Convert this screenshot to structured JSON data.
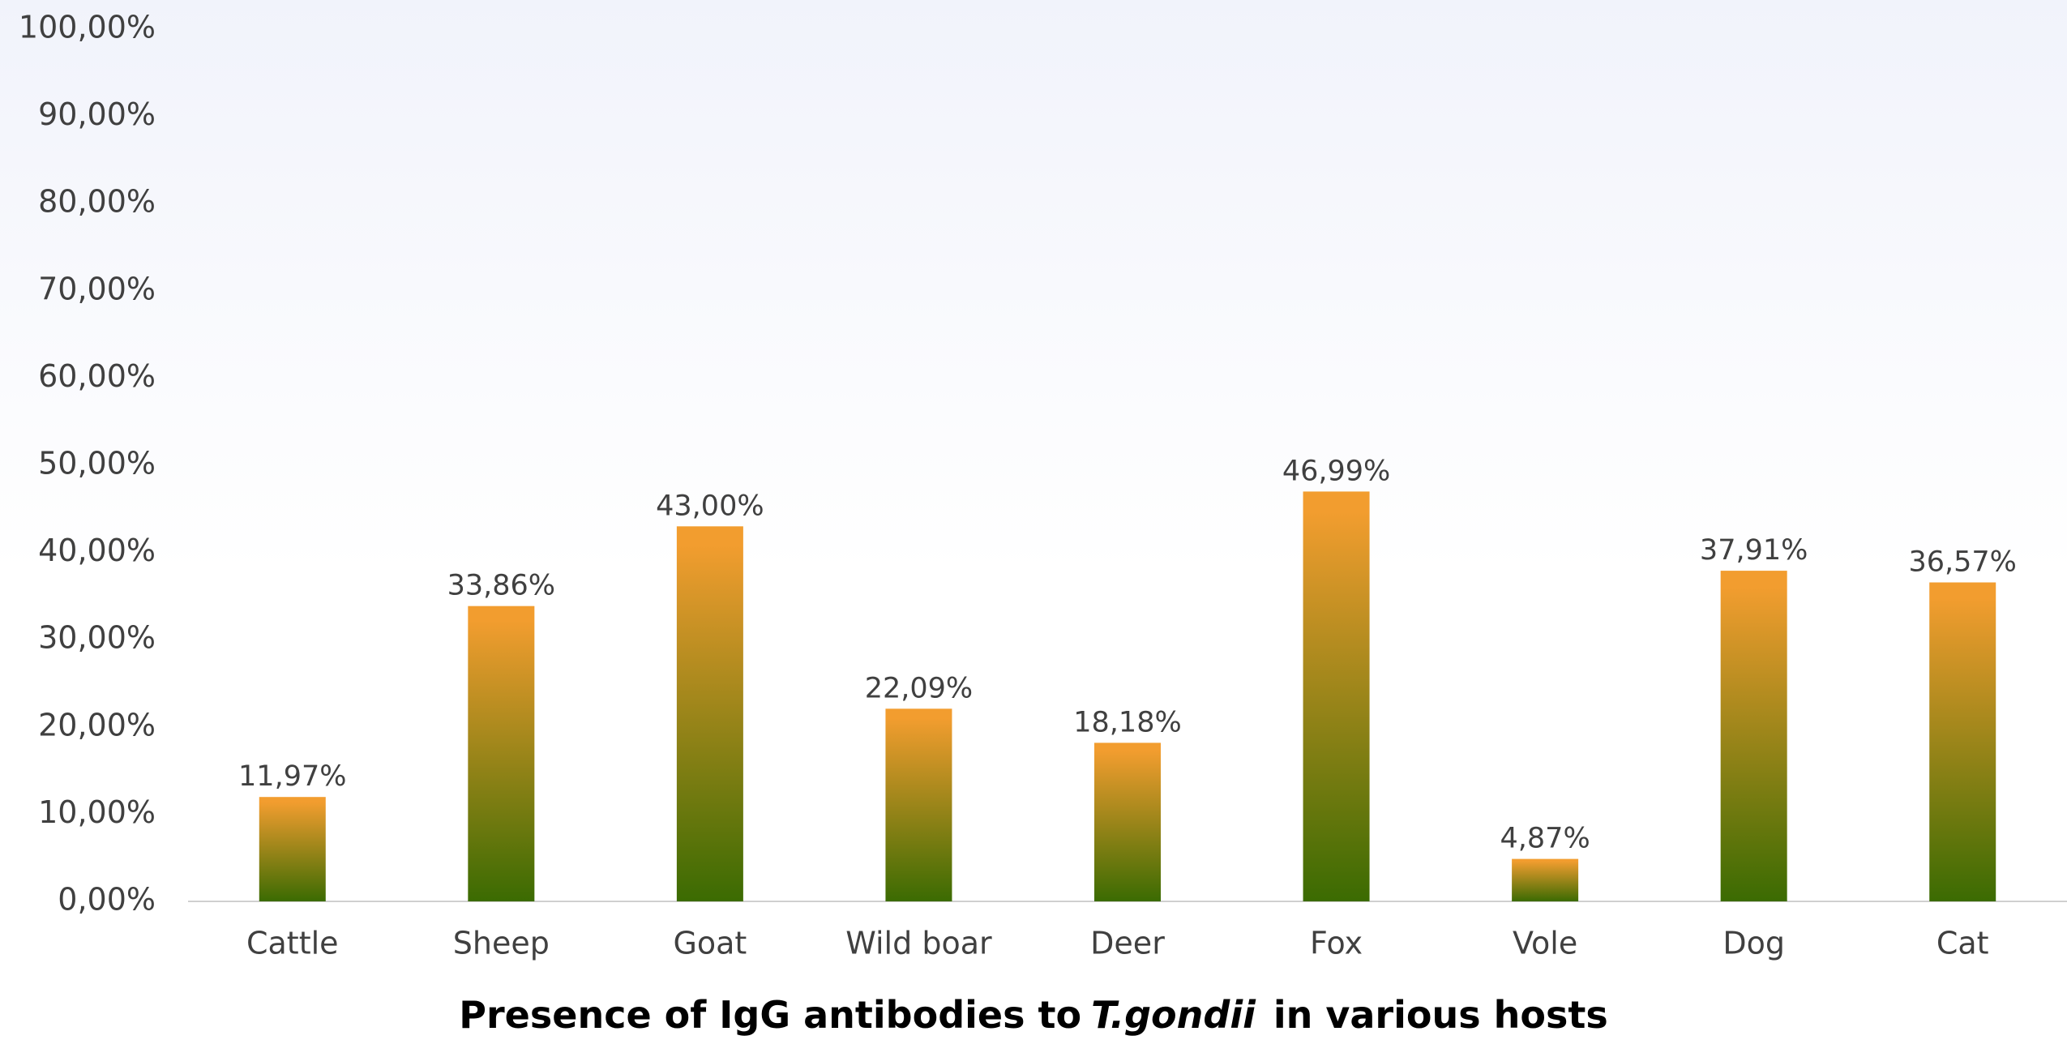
{
  "chart_data": {
    "type": "bar",
    "title": [
      "Presence of IgG antibodies to",
      "T.gondii",
      "in various hosts"
    ],
    "categories": [
      "Cattle",
      "Sheep",
      "Goat",
      "Wild boar",
      "Deer",
      "Fox",
      "Vole",
      "Dog",
      "Cat"
    ],
    "values": [
      11.97,
      33.86,
      43.0,
      22.09,
      18.18,
      46.99,
      4.87,
      37.91,
      36.57
    ],
    "value_labels": [
      "11,97%",
      "33,86%",
      "43,00%",
      "22,09%",
      "18,18%",
      "46,99%",
      "4,87%",
      "37,91%",
      "36,57%"
    ],
    "gradient": [
      "#f29d2f",
      "#3b6b02"
    ],
    "ylim": [
      0,
      100
    ],
    "yticks": [
      {
        "value": 0,
        "label": "0,00%"
      },
      {
        "value": 10,
        "label": "10,00%"
      },
      {
        "value": 20,
        "label": "20,00%"
      },
      {
        "value": 30,
        "label": "30,00%"
      },
      {
        "value": 40,
        "label": "40,00%"
      },
      {
        "value": 50,
        "label": "50,00%"
      },
      {
        "value": 60,
        "label": "60,00%"
      },
      {
        "value": 70,
        "label": "70,00%"
      },
      {
        "value": 80,
        "label": "80,00%"
      },
      {
        "value": 90,
        "label": "90,00%"
      },
      {
        "value": 100,
        "label": "100,00%"
      }
    ],
    "grid": false
  }
}
